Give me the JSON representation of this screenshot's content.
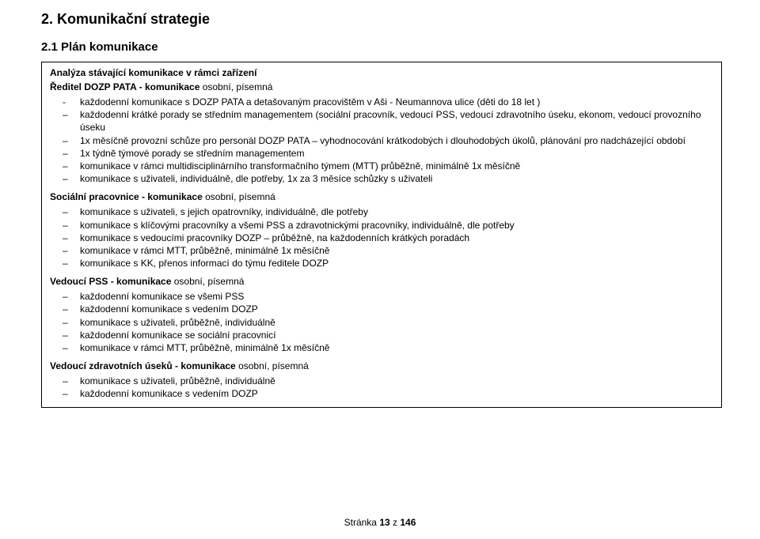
{
  "headings": {
    "h1": "2. Komunikační strategie",
    "h2": "2.1 Plán komunikace"
  },
  "box": {
    "title_bold": "Analýza stávající komunikace v rámci zařízení",
    "s1": {
      "label": "Ředitel DOZP PATA - komunikace",
      "suffix": " osobní, písemná",
      "dash_item": "každodenní komunikace s DOZP PATA a detašovaným pracovištěm v Aši - Neumannova ulice (děti do 18 let )",
      "items": [
        "každodenní krátké porady se středním managementem (sociální pracovník, vedoucí PSS, vedoucí zdravotního úseku, ekonom, vedoucí provozního úseku",
        "1x měsíčně provozní schůze pro personál DOZP PATA – vyhodnocování krátkodobých i dlouhodobých úkolů, plánování pro nadcházející období",
        "1x týdně týmové porady se středním managementem",
        "komunikace v rámci multidisciplinárního transformačního týmem (MTT) průběžně, minimálně 1x měsíčně",
        "komunikace s uživateli, individuálně, dle potřeby, 1x za 3 měsíce schůzky s uživateli"
      ]
    },
    "s2": {
      "label": "Sociální pracovnice - komunikace",
      "suffix": " osobní, písemná",
      "items": [
        "komunikace s uživateli, s jejich opatrovníky, individuálně, dle potřeby",
        "komunikace s klíčovými pracovníky a všemi PSS a zdravotnickými pracovníky, individuálně, dle potřeby",
        "komunikace s vedoucími pracovníky DOZP – průběžně, na každodenních krátkých poradách",
        "komunikace v rámci MTT, průběžně, minimálně 1x měsíčně",
        "komunikace s KK, přenos informací do týmu ředitele DOZP"
      ]
    },
    "s3": {
      "label": "Vedoucí PSS - komunikace",
      "suffix": " osobní, písemná",
      "items": [
        "každodenní komunikace se všemi PSS",
        "každodenní komunikace s vedením DOZP",
        "komunikace s uživateli, průběžně, individuálně",
        "každodenní komunikace se sociální pracovnicí",
        "komunikace v rámci MTT, průběžně, minimálně 1x měsíčně"
      ]
    },
    "s4": {
      "label": "Vedoucí zdravotních úseků - komunikace",
      "suffix": " osobní, písemná",
      "items": [
        "komunikace s uživateli, průběžně, individuálně",
        "každodenní komunikace s vedením DOZP"
      ]
    }
  },
  "footer": {
    "prefix": "Stránka ",
    "page": "13",
    "middle": " z ",
    "total": "146"
  },
  "colors": {
    "text": "#000000",
    "bg": "#ffffff",
    "border": "#000000"
  }
}
